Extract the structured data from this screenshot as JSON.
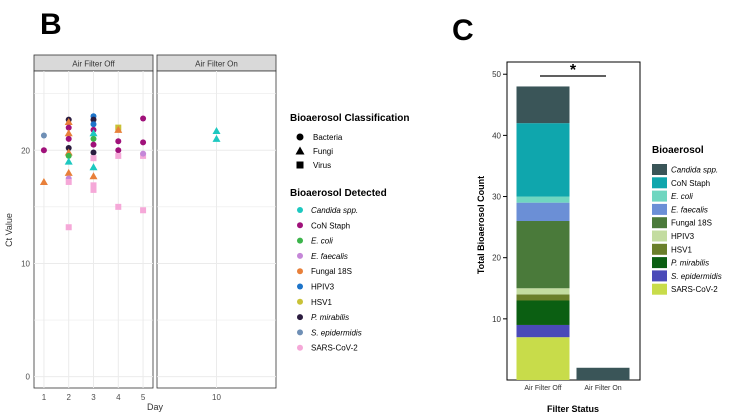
{
  "panel_b": {
    "panel_label": "B",
    "facets": [
      "Air Filter Off",
      "Air Filter On"
    ],
    "classification_legend": {
      "title": "Bioaerosol Classification",
      "entries": [
        {
          "label": "Bacteria",
          "shape": "circle"
        },
        {
          "label": "Fungi",
          "shape": "triangle"
        },
        {
          "label": "Virus",
          "shape": "square"
        }
      ]
    },
    "detected_legend": {
      "title": "Bioaerosol Detected",
      "entries": [
        {
          "label": "Candida spp.",
          "color": "#1dc8c0",
          "italic": true
        },
        {
          "label": "CoN Staph",
          "color": "#a0117a",
          "italic": false
        },
        {
          "label": "E. coli",
          "color": "#3cb44b",
          "italic": true
        },
        {
          "label": "E. faecalis",
          "color": "#c587d8",
          "italic": true
        },
        {
          "label": "Fungal 18S",
          "color": "#e8803a",
          "italic": false
        },
        {
          "label": "HPIV3",
          "color": "#1d74c9",
          "italic": false
        },
        {
          "label": "HSV1",
          "color": "#c9c237",
          "italic": false
        },
        {
          "label": "P. mirabilis",
          "color": "#2b1c3f",
          "italic": true
        },
        {
          "label": "S. epidermidis",
          "color": "#6f8fb5",
          "italic": true
        },
        {
          "label": "SARS-CoV-2",
          "color": "#f5a8d8",
          "italic": false
        }
      ]
    }
  },
  "panel_c": {
    "panel_label": "C",
    "significance": "*",
    "legend_title": "Bioaerosol",
    "legend_entries": [
      {
        "label": "Candida spp.",
        "color": "#3a5558",
        "italic": true
      },
      {
        "label": "CoN Staph",
        "color": "#0fa6ad",
        "italic": false
      },
      {
        "label": "E. coli",
        "color": "#6fd6c0",
        "italic": true
      },
      {
        "label": "E. faecalis",
        "color": "#6b8fd6",
        "italic": true
      },
      {
        "label": "Fungal 18S",
        "color": "#4a7a3a",
        "italic": false
      },
      {
        "label": "HPIV3",
        "color": "#c3dca0",
        "italic": false
      },
      {
        "label": "HSV1",
        "color": "#6a7f2a",
        "italic": false
      },
      {
        "label": "P. mirabilis",
        "color": "#0b5f12",
        "italic": true
      },
      {
        "label": "S. epidermidis",
        "color": "#4a4ab8",
        "italic": true
      },
      {
        "label": "SARS-CoV-2",
        "color": "#c8dc4a",
        "italic": false
      }
    ]
  },
  "chart_data": [
    {
      "type": "scatter",
      "title": "",
      "xlabel": "Day",
      "ylabel": "Ct Value",
      "ylim": [
        -1,
        27
      ],
      "yticks": [
        0,
        10,
        20
      ],
      "grid": true,
      "legend_placement": "right",
      "facets": [
        {
          "name": "Air Filter Off",
          "xlim": [
            0.6,
            5.4
          ],
          "xticks": [
            1,
            2,
            3,
            4,
            5
          ],
          "points": [
            {
              "x": 1,
              "y": 21.3,
              "shape": "circle",
              "series": "S. epidermidis"
            },
            {
              "x": 1,
              "y": 20.0,
              "shape": "circle",
              "series": "CoN Staph"
            },
            {
              "x": 1,
              "y": 17.2,
              "shape": "triangle",
              "series": "Fungal 18S"
            },
            {
              "x": 2,
              "y": 22.7,
              "shape": "circle",
              "series": "P. mirabilis"
            },
            {
              "x": 2,
              "y": 22.5,
              "shape": "triangle",
              "series": "Fungal 18S"
            },
            {
              "x": 2,
              "y": 22.0,
              "shape": "circle",
              "series": "CoN Staph"
            },
            {
              "x": 2,
              "y": 21.5,
              "shape": "triangle",
              "series": "Fungal 18S"
            },
            {
              "x": 2,
              "y": 21.0,
              "shape": "circle",
              "series": "CoN Staph"
            },
            {
              "x": 2,
              "y": 20.2,
              "shape": "circle",
              "series": "P. mirabilis"
            },
            {
              "x": 2,
              "y": 19.8,
              "shape": "triangle",
              "series": "Fungal 18S"
            },
            {
              "x": 2,
              "y": 19.5,
              "shape": "circle",
              "series": "E. coli"
            },
            {
              "x": 2,
              "y": 19.0,
              "shape": "triangle",
              "series": "Candida spp."
            },
            {
              "x": 2,
              "y": 18.0,
              "shape": "triangle",
              "series": "Fungal 18S"
            },
            {
              "x": 2,
              "y": 17.5,
              "shape": "circle",
              "series": "E. faecalis"
            },
            {
              "x": 2,
              "y": 17.2,
              "shape": "square",
              "series": "SARS-CoV-2"
            },
            {
              "x": 2,
              "y": 13.2,
              "shape": "square",
              "series": "SARS-CoV-2"
            },
            {
              "x": 3,
              "y": 23.0,
              "shape": "circle",
              "series": "HPIV3"
            },
            {
              "x": 3,
              "y": 22.7,
              "shape": "circle",
              "series": "P. mirabilis"
            },
            {
              "x": 3,
              "y": 22.3,
              "shape": "circle",
              "series": "HPIV3"
            },
            {
              "x": 3,
              "y": 21.8,
              "shape": "circle",
              "series": "CoN Staph"
            },
            {
              "x": 3,
              "y": 21.5,
              "shape": "triangle",
              "series": "Candida spp."
            },
            {
              "x": 3,
              "y": 21.0,
              "shape": "circle",
              "series": "E. coli"
            },
            {
              "x": 3,
              "y": 20.5,
              "shape": "circle",
              "series": "CoN Staph"
            },
            {
              "x": 3,
              "y": 19.8,
              "shape": "circle",
              "series": "P. mirabilis"
            },
            {
              "x": 3,
              "y": 19.3,
              "shape": "square",
              "series": "SARS-CoV-2"
            },
            {
              "x": 3,
              "y": 18.5,
              "shape": "triangle",
              "series": "Candida spp."
            },
            {
              "x": 3,
              "y": 17.7,
              "shape": "triangle",
              "series": "Fungal 18S"
            },
            {
              "x": 3,
              "y": 16.9,
              "shape": "square",
              "series": "SARS-CoV-2"
            },
            {
              "x": 3,
              "y": 16.5,
              "shape": "square",
              "series": "SARS-CoV-2"
            },
            {
              "x": 4,
              "y": 22.0,
              "shape": "square",
              "series": "HSV1"
            },
            {
              "x": 4,
              "y": 21.8,
              "shape": "triangle",
              "series": "Fungal 18S"
            },
            {
              "x": 4,
              "y": 20.8,
              "shape": "circle",
              "series": "CoN Staph"
            },
            {
              "x": 4,
              "y": 20.0,
              "shape": "circle",
              "series": "CoN Staph"
            },
            {
              "x": 4,
              "y": 19.5,
              "shape": "square",
              "series": "SARS-CoV-2"
            },
            {
              "x": 4,
              "y": 15.0,
              "shape": "square",
              "series": "SARS-CoV-2"
            },
            {
              "x": 5,
              "y": 22.8,
              "shape": "circle",
              "series": "CoN Staph"
            },
            {
              "x": 5,
              "y": 20.7,
              "shape": "circle",
              "series": "CoN Staph"
            },
            {
              "x": 5,
              "y": 19.5,
              "shape": "square",
              "series": "SARS-CoV-2"
            },
            {
              "x": 5,
              "y": 19.7,
              "shape": "circle",
              "series": "E. faecalis"
            },
            {
              "x": 5,
              "y": 14.7,
              "shape": "square",
              "series": "SARS-CoV-2"
            }
          ]
        },
        {
          "name": "Air Filter On",
          "xlim": [
            6,
            14
          ],
          "xticks": [
            10
          ],
          "points": [
            {
              "x": 10,
              "y": 21.7,
              "shape": "triangle",
              "series": "Candida spp."
            },
            {
              "x": 10,
              "y": 21.0,
              "shape": "triangle",
              "series": "Candida spp."
            }
          ]
        }
      ]
    },
    {
      "type": "bar",
      "stacked": true,
      "title": "",
      "xlabel": "Filter Status",
      "ylabel": "Total Bioaerosol Count",
      "ylim": [
        0,
        52
      ],
      "yticks": [
        10,
        20,
        30,
        40,
        50
      ],
      "grid": false,
      "legend_placement": "right",
      "categories": [
        "Air Filter Off",
        "Air Filter On"
      ],
      "series": [
        {
          "name": "SARS-CoV-2",
          "values": [
            7,
            0
          ]
        },
        {
          "name": "S. epidermidis",
          "values": [
            2,
            0
          ]
        },
        {
          "name": "P. mirabilis",
          "values": [
            4,
            0
          ]
        },
        {
          "name": "HSV1",
          "values": [
            1,
            0
          ]
        },
        {
          "name": "HPIV3",
          "values": [
            1,
            0
          ]
        },
        {
          "name": "Fungal 18S",
          "values": [
            11,
            0
          ]
        },
        {
          "name": "E. faecalis",
          "values": [
            3,
            0
          ]
        },
        {
          "name": "E. coli",
          "values": [
            1,
            0
          ]
        },
        {
          "name": "CoN Staph",
          "values": [
            12,
            0
          ]
        },
        {
          "name": "Candida spp.",
          "values": [
            6,
            2
          ]
        }
      ],
      "annotations": [
        {
          "text": "*",
          "between": [
            "Air Filter Off",
            "Air Filter On"
          ]
        }
      ]
    }
  ]
}
